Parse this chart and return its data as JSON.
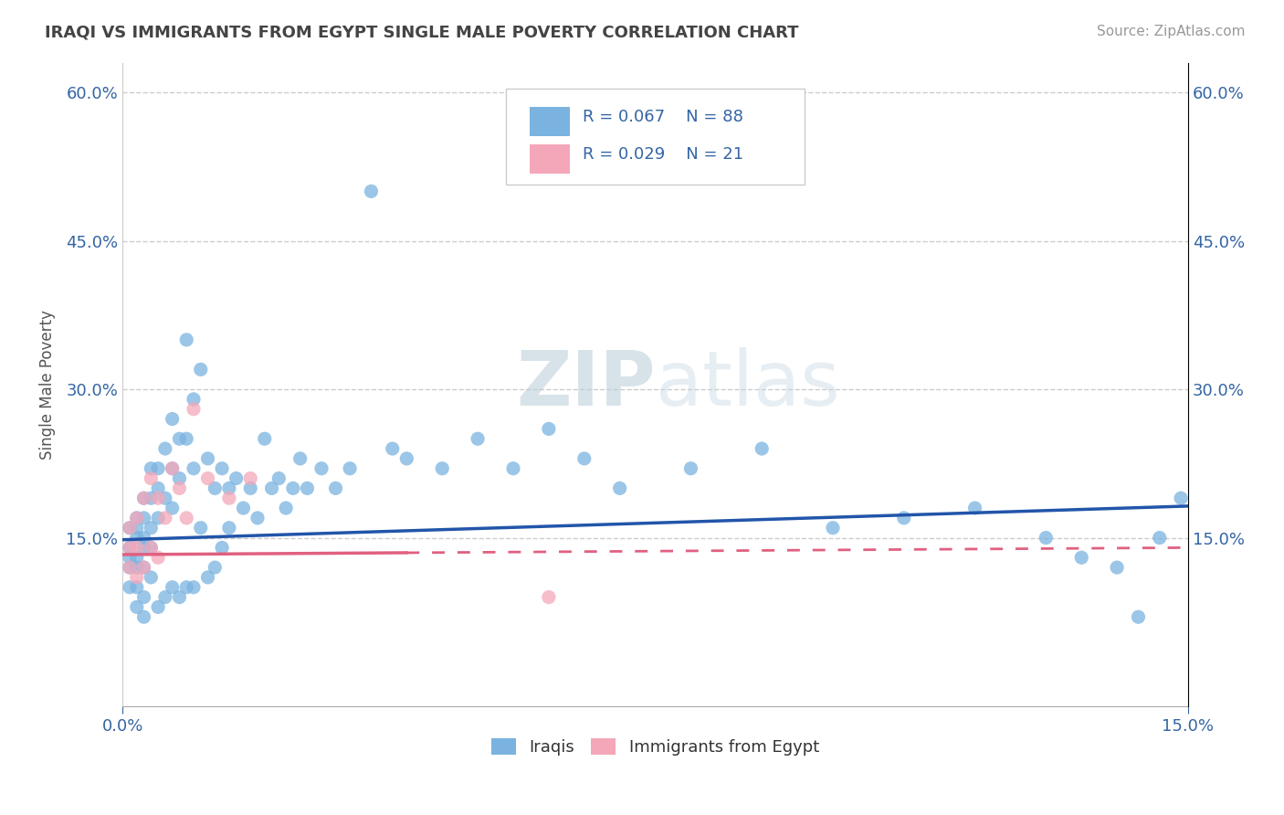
{
  "title": "IRAQI VS IMMIGRANTS FROM EGYPT SINGLE MALE POVERTY CORRELATION CHART",
  "source": "Source: ZipAtlas.com",
  "ylabel": "Single Male Poverty",
  "xlim": [
    0.0,
    0.15
  ],
  "ylim": [
    -0.02,
    0.63
  ],
  "ytick_vals": [
    0.15,
    0.3,
    0.45,
    0.6
  ],
  "ytick_labels": [
    "15.0%",
    "30.0%",
    "45.0%",
    "60.0%"
  ],
  "xtick_vals": [
    0.0,
    0.15
  ],
  "xtick_labels": [
    "0.0%",
    "15.0%"
  ],
  "background_color": "#ffffff",
  "grid_color": "#cccccc",
  "color_iraqi": "#7ab3e0",
  "color_egypt": "#f4a7b9",
  "color_trendline_iraqi": "#2255aa",
  "color_trendline_egypt": "#e06080",
  "tick_color": "#3465a4",
  "title_color": "#444444",
  "source_color": "#999999",
  "watermark_color": "#dde8f0",
  "legend_r1": "R = 0.067",
  "legend_n1": "N = 88",
  "legend_r2": "R = 0.029",
  "legend_n2": "N = 21",
  "trendline_iraqi_y0": 0.148,
  "trendline_iraqi_y1": 0.182,
  "trendline_egypt_x0": 0.0,
  "trendline_egypt_x1": 0.15,
  "trendline_egypt_y0": 0.133,
  "trendline_egypt_y1": 0.14,
  "iraqi_x": [
    0.001,
    0.001,
    0.001,
    0.001,
    0.001,
    0.002,
    0.002,
    0.002,
    0.002,
    0.002,
    0.002,
    0.002,
    0.003,
    0.003,
    0.003,
    0.003,
    0.003,
    0.003,
    0.003,
    0.004,
    0.004,
    0.004,
    0.004,
    0.004,
    0.005,
    0.005,
    0.005,
    0.005,
    0.006,
    0.006,
    0.006,
    0.007,
    0.007,
    0.007,
    0.007,
    0.008,
    0.008,
    0.008,
    0.009,
    0.009,
    0.009,
    0.01,
    0.01,
    0.01,
    0.011,
    0.011,
    0.012,
    0.012,
    0.013,
    0.013,
    0.014,
    0.014,
    0.015,
    0.015,
    0.016,
    0.017,
    0.018,
    0.019,
    0.02,
    0.021,
    0.022,
    0.023,
    0.024,
    0.025,
    0.026,
    0.028,
    0.03,
    0.032,
    0.035,
    0.038,
    0.04,
    0.045,
    0.05,
    0.055,
    0.06,
    0.065,
    0.07,
    0.08,
    0.09,
    0.1,
    0.11,
    0.12,
    0.13,
    0.135,
    0.14,
    0.143,
    0.146,
    0.149
  ],
  "iraqi_y": [
    0.16,
    0.14,
    0.13,
    0.12,
    0.1,
    0.17,
    0.16,
    0.15,
    0.13,
    0.12,
    0.1,
    0.08,
    0.19,
    0.17,
    0.15,
    0.14,
    0.12,
    0.09,
    0.07,
    0.22,
    0.19,
    0.16,
    0.14,
    0.11,
    0.22,
    0.2,
    0.17,
    0.08,
    0.24,
    0.19,
    0.09,
    0.27,
    0.22,
    0.18,
    0.1,
    0.25,
    0.21,
    0.09,
    0.35,
    0.25,
    0.1,
    0.29,
    0.22,
    0.1,
    0.32,
    0.16,
    0.23,
    0.11,
    0.2,
    0.12,
    0.22,
    0.14,
    0.2,
    0.16,
    0.21,
    0.18,
    0.2,
    0.17,
    0.25,
    0.2,
    0.21,
    0.18,
    0.2,
    0.23,
    0.2,
    0.22,
    0.2,
    0.22,
    0.5,
    0.24,
    0.23,
    0.22,
    0.25,
    0.22,
    0.26,
    0.23,
    0.2,
    0.22,
    0.24,
    0.16,
    0.17,
    0.18,
    0.15,
    0.13,
    0.12,
    0.07,
    0.15,
    0.19
  ],
  "egypt_x": [
    0.001,
    0.001,
    0.001,
    0.002,
    0.002,
    0.002,
    0.003,
    0.003,
    0.004,
    0.004,
    0.005,
    0.005,
    0.006,
    0.007,
    0.008,
    0.009,
    0.01,
    0.012,
    0.015,
    0.018,
    0.06
  ],
  "egypt_y": [
    0.16,
    0.14,
    0.12,
    0.17,
    0.14,
    0.11,
    0.19,
    0.12,
    0.21,
    0.14,
    0.19,
    0.13,
    0.17,
    0.22,
    0.2,
    0.17,
    0.28,
    0.21,
    0.19,
    0.21,
    0.09
  ]
}
